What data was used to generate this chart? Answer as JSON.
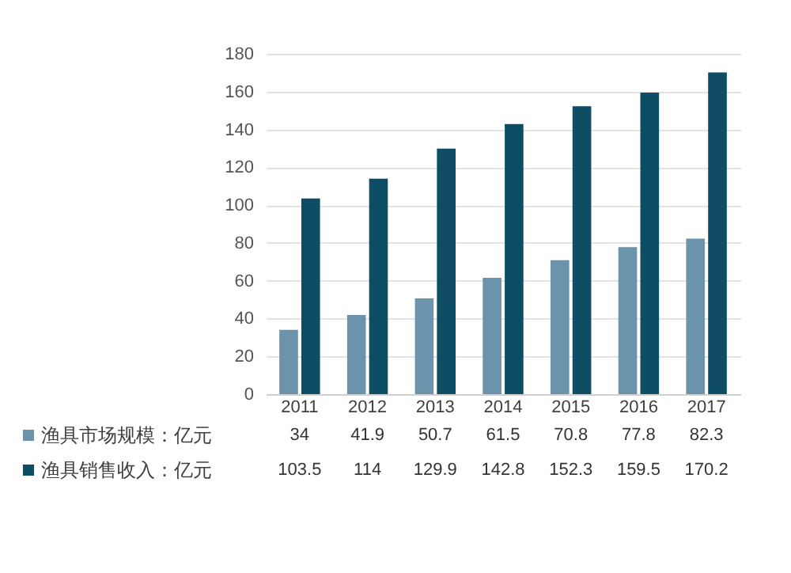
{
  "chart_data": {
    "type": "bar",
    "categories": [
      "2011",
      "2012",
      "2013",
      "2014",
      "2015",
      "2016",
      "2017"
    ],
    "series": [
      {
        "name": "渔具市场规模：亿元",
        "color": "#6b93ab",
        "values": [
          34,
          41.9,
          50.7,
          61.5,
          70.8,
          77.8,
          82.3
        ]
      },
      {
        "name": "渔具销售收入：亿元",
        "color": "#0e4d64",
        "values": [
          103.5,
          114,
          129.9,
          142.8,
          152.3,
          159.5,
          170.2
        ]
      }
    ],
    "ylim": [
      0,
      180
    ],
    "yticks": [
      0,
      20,
      40,
      60,
      80,
      100,
      120,
      140,
      160,
      180
    ],
    "grid": "y",
    "legend": "bottom",
    "data_labels": true
  }
}
